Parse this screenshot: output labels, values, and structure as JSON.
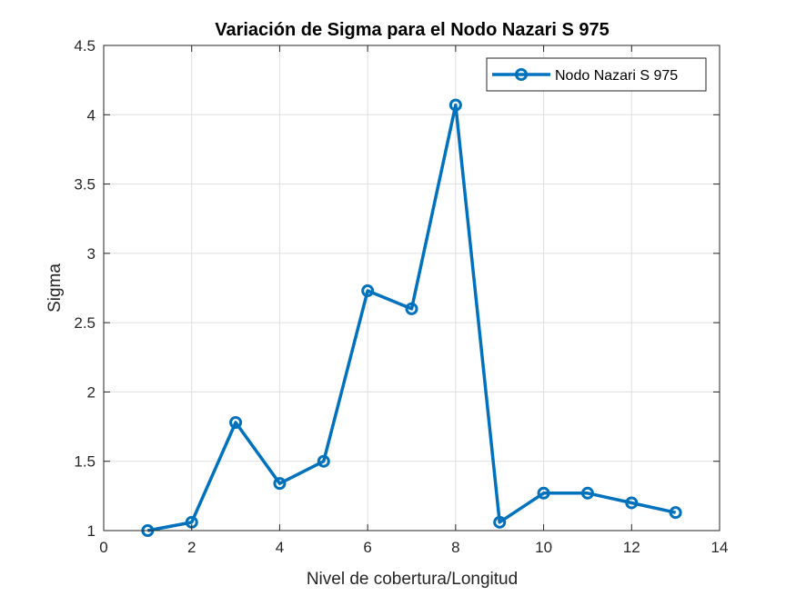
{
  "chart_data": {
    "type": "line",
    "title": "Variación de Sigma para el Nodo Nazari S 975",
    "xlabel": "Nivel de cobertura/Longitud",
    "ylabel": "Sigma",
    "xlim": [
      0,
      14
    ],
    "ylim": [
      1,
      4.5
    ],
    "xticks": [
      0,
      2,
      4,
      6,
      8,
      10,
      12,
      14
    ],
    "yticks": [
      1,
      1.5,
      2,
      2.5,
      3,
      3.5,
      4,
      4.5
    ],
    "xtick_labels": [
      "0",
      "2",
      "4",
      "6",
      "8",
      "10",
      "12",
      "14"
    ],
    "ytick_labels": [
      "1",
      "1.5",
      "2",
      "2.5",
      "3",
      "3.5",
      "4",
      "4.5"
    ],
    "grid": true,
    "legend_position": "top-right",
    "series": [
      {
        "name": "Nodo Nazari S 975",
        "color": "#0072BD",
        "marker": "circle",
        "x": [
          1,
          2,
          3,
          4,
          5,
          6,
          7,
          8,
          9,
          10,
          11,
          12,
          13
        ],
        "y": [
          1.0,
          1.06,
          1.78,
          1.34,
          1.5,
          2.73,
          2.6,
          4.07,
          1.06,
          1.27,
          1.27,
          1.2,
          1.13
        ]
      }
    ]
  }
}
